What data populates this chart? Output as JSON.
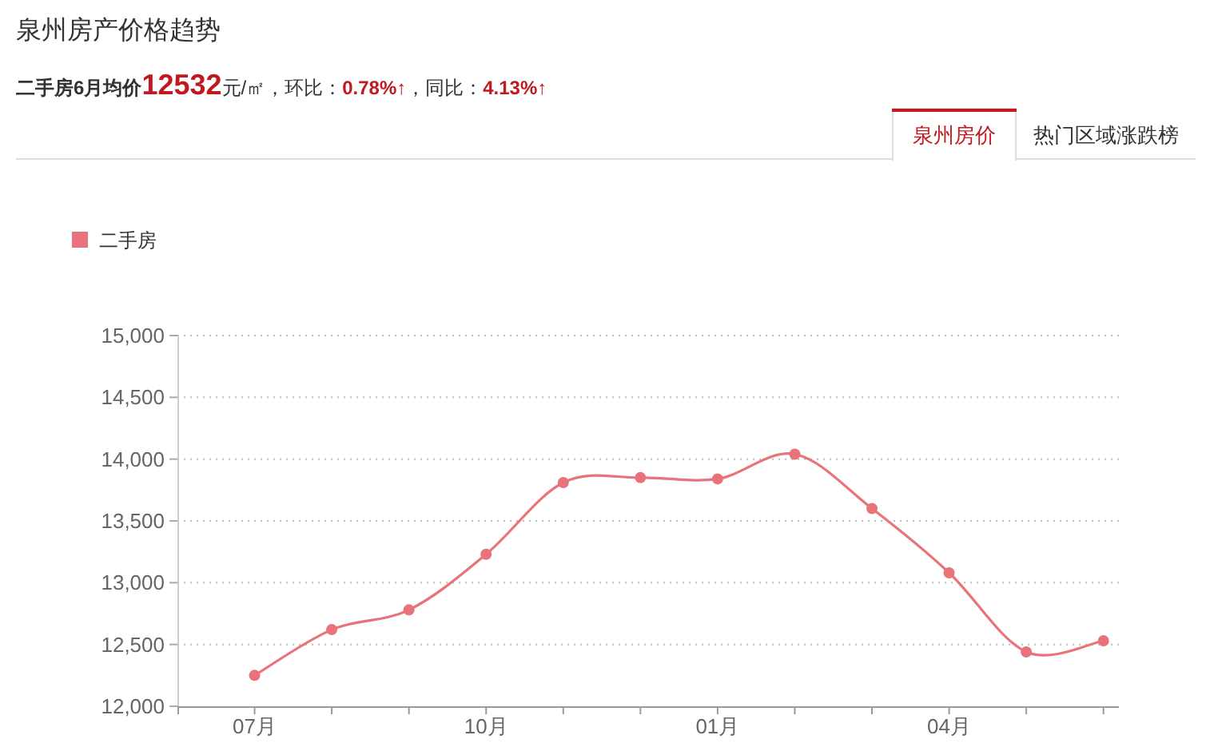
{
  "chart_data": {
    "type": "line",
    "title": "泉州房产价格趋势",
    "subtitle": "二手房6月均价**12532**元/㎡，环比：**0.78%↑**，同比：**4.13%↑**",
    "categories": [
      "07月",
      null,
      null,
      "10月",
      null,
      null,
      "01月",
      null,
      null,
      "04月",
      null,
      null
    ],
    "series": [
      {
        "name": "二手房",
        "color": "#e8737a",
        "values": [
          12250,
          12620,
          12780,
          13230,
          13810,
          13850,
          13840,
          14040,
          13600,
          13080,
          12440,
          12530
        ]
      }
    ],
    "ylim": [
      12000,
      15000
    ],
    "yticks": [
      {
        "value": 12000,
        "label": "12,000"
      },
      {
        "value": 12500,
        "label": "12,500"
      },
      {
        "value": 13000,
        "label": "13,000"
      },
      {
        "value": 13500,
        "label": "13,500"
      },
      {
        "value": 14000,
        "label": "14,000"
      },
      {
        "value": 14500,
        "label": "14,500"
      },
      {
        "value": 15000,
        "label": "15,000"
      }
    ],
    "grid": "y",
    "legend": "top left",
    "marker": "circle",
    "line_style": "solid",
    "annotations": [
      "泉州房价",
      "热门区域涨跌榜"
    ]
  }
}
